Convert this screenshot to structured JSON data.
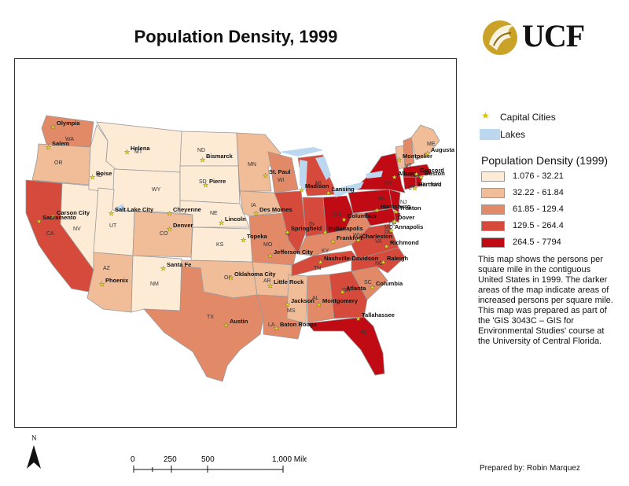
{
  "title": "Population Density, 1999",
  "logo_text": "UCF",
  "legend": {
    "capital_label": "Capital Cities",
    "lakes_label": "Lakes",
    "density_title": "Population Density (1999)",
    "classes": [
      {
        "label": "1.076 - 32.21",
        "color": "#fdebd6"
      },
      {
        "label": "32.22 - 61.84",
        "color": "#f1bc98"
      },
      {
        "label": "61.85 - 129.4",
        "color": "#e28a68"
      },
      {
        "label": "129.5 - 264.4",
        "color": "#d54a3a"
      },
      {
        "label": "264.5 - 7794",
        "color": "#c00a14"
      }
    ]
  },
  "description": "This map shows the persons per square mile in the contiguous United States in 1999. The darker areas of the map indicate areas of increased persons per square mile. This map was prepared as part of the 'GIS 3043C – GIS for Environmental Studies' course at the University of Central Florida.",
  "prepared_by": "Prepared by: Robin Marquez",
  "north_label": "N",
  "scale_labels": [
    "0",
    "250",
    "500",
    "1,000 Miles"
  ],
  "colors": {
    "lakes": "#bcd7f0",
    "star": "#f2e400",
    "border": "#9a9a9a"
  },
  "map": {
    "state_abbrevs": [
      "WA",
      "OR",
      "CA",
      "NV",
      "ID",
      "MT",
      "WY",
      "UT",
      "AZ",
      "NM",
      "CO",
      "ND",
      "SD",
      "NE",
      "KS",
      "OK",
      "TX",
      "MN",
      "IA",
      "MO",
      "AR",
      "LA",
      "WI",
      "IL",
      "MI",
      "IN",
      "OH",
      "KY",
      "TN",
      "MS",
      "AL",
      "GA",
      "FL",
      "SC",
      "NC",
      "VA",
      "WV",
      "PA",
      "NY",
      "ME",
      "VT",
      "NH",
      "MA",
      "RI",
      "CT",
      "NJ",
      "DE",
      "MD",
      "DC"
    ],
    "capitals": [
      "Olympia",
      "Salem",
      "Boise",
      "Helena",
      "Bismarck",
      "Pierre",
      "Salt Lake City",
      "Carson City",
      "Sacramento",
      "Cheyenne",
      "Denver",
      "Lincoln",
      "Topeka",
      "Santa Fe",
      "Phoenix",
      "Oklahoma City",
      "Austin",
      "Baton Rouge",
      "Jackson",
      "Little Rock",
      "Jefferson City",
      "Springfield",
      "Des Moines",
      "St. Paul",
      "Madison",
      "Lansing",
      "Indianapolis",
      "Columbus",
      "Frankfort",
      "Nashville-Davidson",
      "Montgomery",
      "Atlanta",
      "Tallahassee",
      "Columbia",
      "Raleigh",
      "Richmond",
      "Charleston",
      "Harrisburg",
      "Albany",
      "Montpelier",
      "Concord",
      "Augusta",
      "Boston",
      "Hartford",
      "Trenton",
      "Dover",
      "Annapolis"
    ]
  }
}
